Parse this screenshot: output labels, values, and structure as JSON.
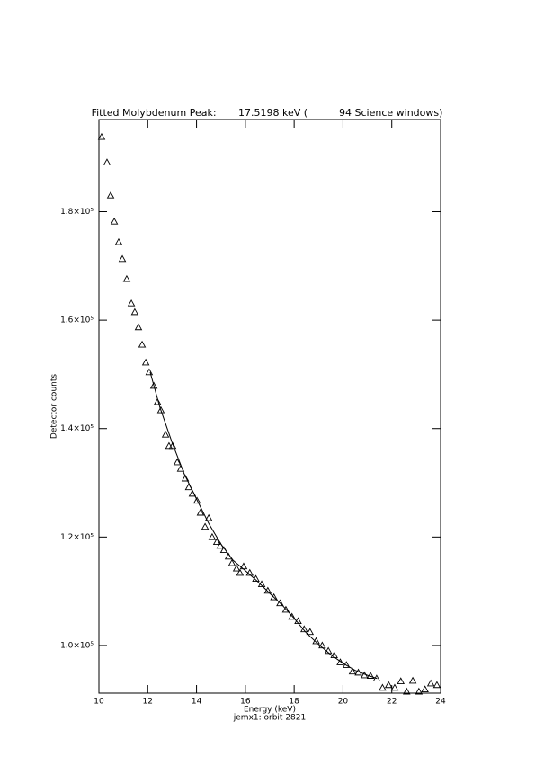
{
  "chart_data": {
    "type": "scatter",
    "title": "Fitted Molybdenum Peak:       17.5198 keV (          94 Science windows)",
    "x_label": "Energy (keV)",
    "subtitle": "jemx1: orbit 2821",
    "y_label": "Detector counts",
    "color": "#000000",
    "xlim": [
      10,
      24
    ],
    "xticks": [
      10,
      12,
      14,
      16,
      18,
      20,
      22,
      24
    ],
    "ylim": [
      91200,
      197000
    ],
    "yticks": [
      {
        "value": 100000,
        "label": "1.0×10⁵"
      },
      {
        "value": 120000,
        "label": "1.2×10⁵"
      },
      {
        "value": 140000,
        "label": "1.4×10⁵"
      },
      {
        "value": 160000,
        "label": "1.6×10⁵"
      },
      {
        "value": 180000,
        "label": "1.8×10⁵"
      }
    ],
    "points": {
      "x": [
        10.11,
        10.33,
        10.48,
        10.63,
        10.81,
        10.96,
        11.14,
        11.33,
        11.47,
        11.62,
        11.77,
        11.92,
        12.06,
        12.25,
        12.4,
        12.54,
        12.73,
        12.87,
        13.02,
        13.21,
        13.35,
        13.54,
        13.68,
        13.83,
        14.02,
        14.16,
        14.35,
        14.5,
        14.64,
        14.83,
        14.97,
        15.12,
        15.31,
        15.45,
        15.64,
        15.78,
        15.93,
        16.18,
        16.43,
        16.67,
        16.92,
        17.17,
        17.42,
        17.66,
        17.91,
        18.16,
        18.41,
        18.65,
        18.9,
        19.15,
        19.4,
        19.64,
        19.89,
        20.14,
        20.39,
        20.63,
        20.88,
        21.13,
        21.38,
        21.62,
        21.87,
        22.12,
        22.37,
        22.61,
        22.86,
        23.11,
        23.36,
        23.6,
        23.85
      ],
      "values": [
        193800,
        189100,
        183000,
        178200,
        174400,
        171300,
        167600,
        163100,
        161500,
        158700,
        155500,
        152200,
        150400,
        147900,
        144900,
        143400,
        138900,
        136800,
        136800,
        133800,
        132600,
        130800,
        129200,
        128000,
        126700,
        124500,
        121900,
        123500,
        120000,
        119100,
        118400,
        117600,
        116400,
        115200,
        114200,
        113400,
        114600,
        113400,
        112300,
        111300,
        110100,
        108900,
        107800,
        106600,
        105300,
        104500,
        103000,
        102500,
        100800,
        100000,
        99000,
        98200,
        96900,
        96400,
        95200,
        95000,
        94500,
        94400,
        93900,
        92200,
        92700,
        92200,
        93400,
        91500,
        93500,
        91500,
        91900,
        93000,
        92700
      ]
    },
    "fit_line": {
      "x": [
        12.1,
        12.5,
        13,
        13.5,
        14,
        14.5,
        15,
        15.5,
        16,
        16.5,
        17,
        17.5,
        18,
        18.5,
        19,
        19.5,
        20,
        20.5,
        21,
        21.4
      ],
      "values": [
        150400,
        143900,
        137400,
        131600,
        127000,
        122500,
        118700,
        115700,
        113800,
        111800,
        109600,
        107500,
        105000,
        102300,
        100200,
        98300,
        96700,
        95400,
        94500,
        93900
      ]
    }
  }
}
